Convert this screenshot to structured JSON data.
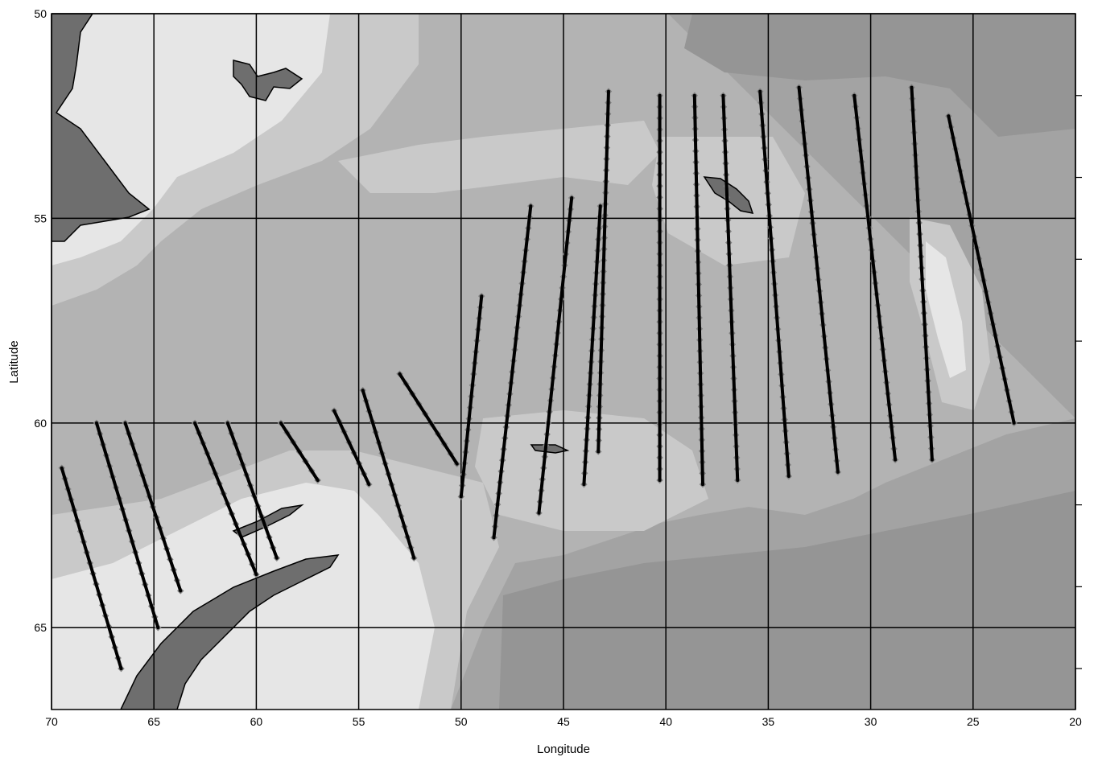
{
  "map": {
    "x_axis_title": "Longitude",
    "y_axis_title": "Latitude",
    "x_ticks": [
      "70",
      "65",
      "60",
      "55",
      "50",
      "45",
      "40",
      "35",
      "30",
      "25",
      "20"
    ],
    "y_ticks": [
      "50",
      "55",
      "60",
      "65"
    ],
    "x_range": [
      70,
      20
    ],
    "y_range": [
      50,
      67
    ],
    "colors": {
      "land": "#6e6e6e",
      "shelf": "#e6e6e6",
      "slope": "#c9c9c9",
      "mid_depth": "#b3b3b3",
      "deep": "#a3a3a3",
      "abyss": "#959595",
      "track_line": "#000000",
      "station_marker": "#808080"
    }
  },
  "chart_data": {
    "type": "scatter",
    "xlabel": "Longitude",
    "ylabel": "Latitude",
    "xlim": [
      70,
      20
    ],
    "ylim": [
      50,
      67
    ],
    "grid": true,
    "series": [
      {
        "points": [
          [
            69.5,
            61.1
          ],
          [
            66.6,
            66.0
          ]
        ]
      },
      {
        "points": [
          [
            67.8,
            60.0
          ],
          [
            64.8,
            65.0
          ]
        ]
      },
      {
        "points": [
          [
            66.4,
            60.0
          ],
          [
            63.7,
            64.1
          ]
        ]
      },
      {
        "points": [
          [
            63.0,
            60.0
          ],
          [
            60.0,
            63.7
          ]
        ]
      },
      {
        "points": [
          [
            61.4,
            60.0
          ],
          [
            59.0,
            63.3
          ]
        ]
      },
      {
        "points": [
          [
            58.8,
            60.0
          ],
          [
            57.0,
            61.4
          ]
        ]
      },
      {
        "points": [
          [
            56.2,
            59.7
          ],
          [
            54.5,
            61.5
          ]
        ]
      },
      {
        "points": [
          [
            54.8,
            59.2
          ],
          [
            52.3,
            63.3
          ]
        ]
      },
      {
        "points": [
          [
            53.0,
            58.8
          ],
          [
            50.2,
            61.0
          ]
        ]
      },
      {
        "points": [
          [
            49.0,
            56.9
          ],
          [
            50.0,
            61.8
          ]
        ]
      },
      {
        "points": [
          [
            46.6,
            54.7
          ],
          [
            48.4,
            62.8
          ]
        ]
      },
      {
        "points": [
          [
            44.6,
            54.5
          ],
          [
            46.2,
            62.2
          ]
        ]
      },
      {
        "points": [
          [
            43.2,
            54.7
          ],
          [
            44.0,
            61.5
          ]
        ]
      },
      {
        "points": [
          [
            42.8,
            51.9
          ],
          [
            43.3,
            60.7
          ]
        ]
      },
      {
        "points": [
          [
            40.3,
            52.0
          ],
          [
            40.3,
            61.4
          ]
        ]
      },
      {
        "points": [
          [
            38.6,
            52.0
          ],
          [
            38.2,
            61.5
          ]
        ]
      },
      {
        "points": [
          [
            37.2,
            52.0
          ],
          [
            36.5,
            61.4
          ]
        ]
      },
      {
        "points": [
          [
            35.4,
            51.9
          ],
          [
            34.0,
            61.3
          ]
        ]
      },
      {
        "points": [
          [
            33.5,
            51.8
          ],
          [
            31.6,
            61.2
          ]
        ]
      },
      {
        "points": [
          [
            30.8,
            52.0
          ],
          [
            28.8,
            60.9
          ]
        ]
      },
      {
        "points": [
          [
            28.0,
            51.8
          ],
          [
            27.0,
            60.9
          ]
        ]
      },
      {
        "points": [
          [
            26.2,
            52.5
          ],
          [
            23.0,
            60.0
          ]
        ]
      }
    ]
  }
}
